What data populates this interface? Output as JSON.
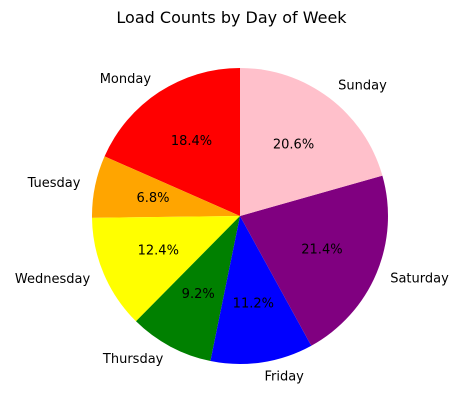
{
  "chart_data": {
    "type": "pie",
    "title": "Load Counts by Day of Week",
    "start_angle_deg": 90,
    "direction": "counterclockwise",
    "slices": [
      {
        "label": "Monday",
        "value": 18.4,
        "pct_label": "18.4%",
        "color": "#ff0000"
      },
      {
        "label": "Tuesday",
        "value": 6.8,
        "pct_label": "6.8%",
        "color": "#ffa500"
      },
      {
        "label": "Wednesday",
        "value": 12.4,
        "pct_label": "12.4%",
        "color": "#ffff00"
      },
      {
        "label": "Thursday",
        "value": 9.2,
        "pct_label": "9.2%",
        "color": "#008000"
      },
      {
        "label": "Friday",
        "value": 11.2,
        "pct_label": "11.2%",
        "color": "#0000ff"
      },
      {
        "label": "Saturday",
        "value": 21.4,
        "pct_label": "21.4%",
        "color": "#800080"
      },
      {
        "label": "Sunday",
        "value": 20.6,
        "pct_label": "20.6%",
        "color": "#ffc0cb"
      }
    ]
  }
}
